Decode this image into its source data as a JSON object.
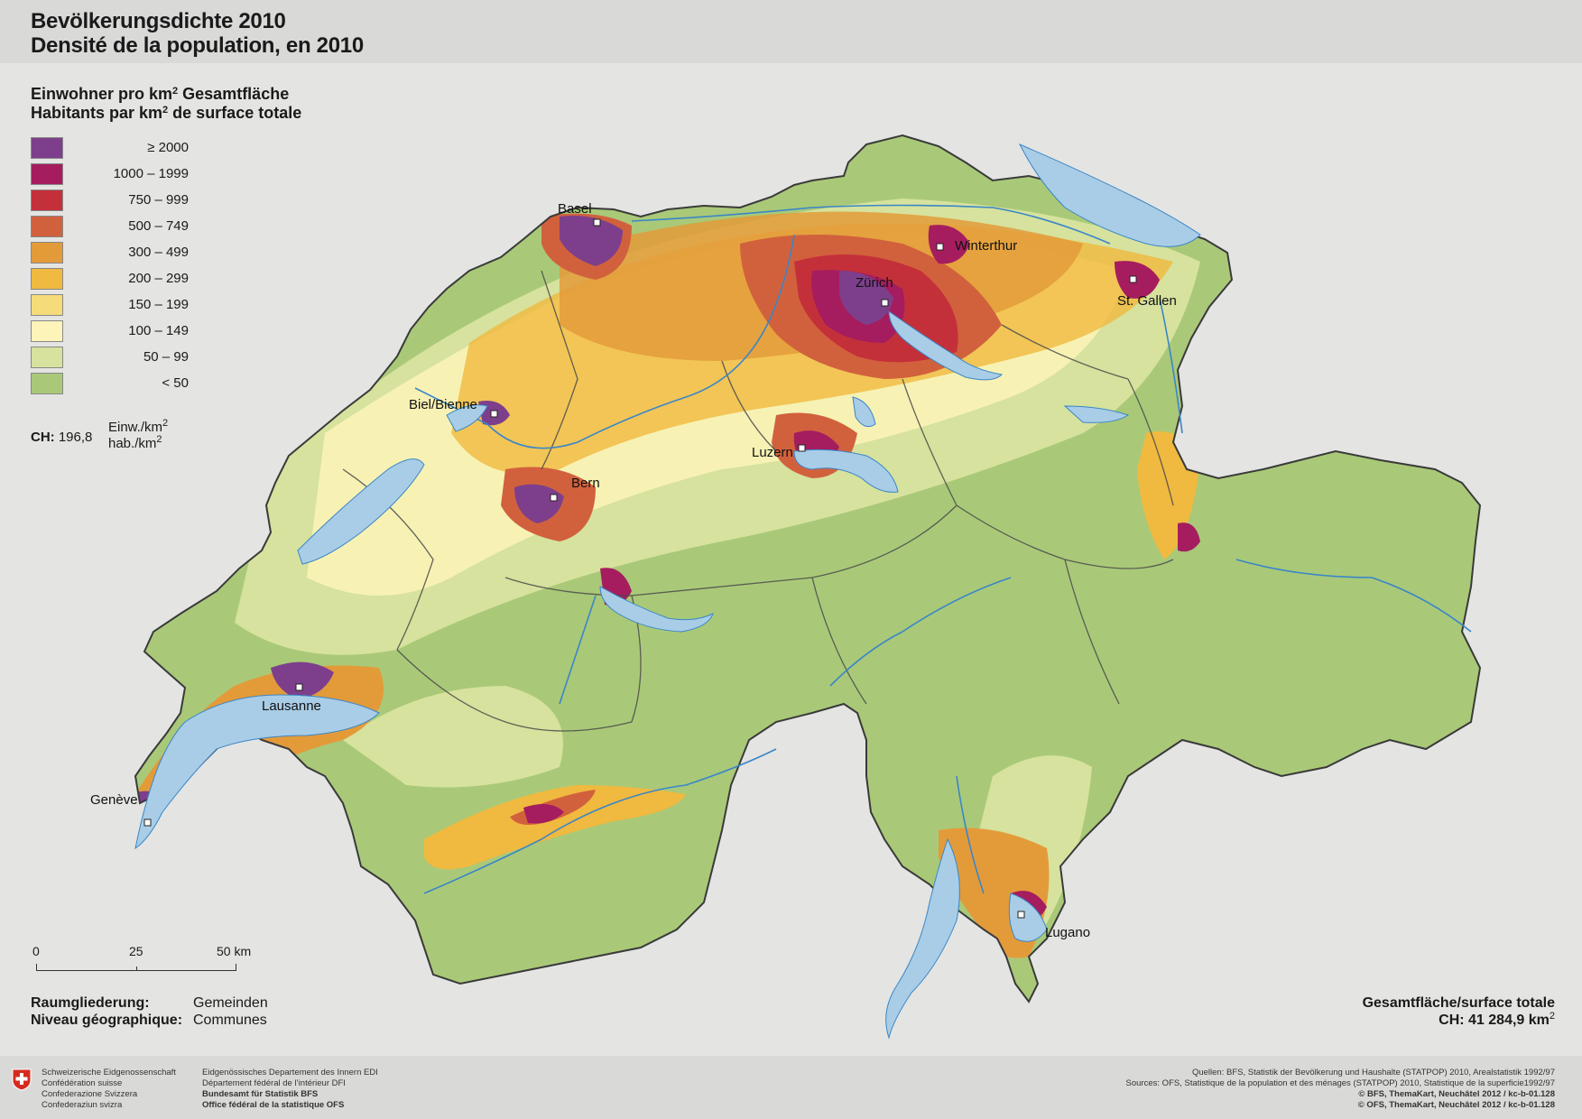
{
  "title": {
    "line1": "Bevölkerungsdichte 2010",
    "line2": "Densité de la population, en 2010"
  },
  "legend": {
    "title_de_a": "Einwohner pro km",
    "title_de_b": " Gesamtfläche",
    "title_fr_a": "Habitants par km",
    "title_fr_b": " de surface totale",
    "sup": "2",
    "classes": [
      {
        "label": "≥ 2000",
        "color": "#7d3f8c"
      },
      {
        "label": "1000  –  1999",
        "color": "#a51d5f"
      },
      {
        "label": "750  –    999",
        "color": "#c4303a"
      },
      {
        "label": "500  –    749",
        "color": "#d1613d"
      },
      {
        "label": "300  –    499",
        "color": "#e39b3a"
      },
      {
        "label": "200  –    299",
        "color": "#f0b93f"
      },
      {
        "label": "150  –    199",
        "color": "#f6db7a"
      },
      {
        "label": "100  –    149",
        "color": "#fdf4b9"
      },
      {
        "label": "50  –      99",
        "color": "#d6e29d"
      },
      {
        "label": "<    50",
        "color": "#a9c978"
      }
    ]
  },
  "ch_average": {
    "label": "CH:",
    "value": "196,8",
    "unit_de": "Einw./km",
    "unit_fr": "hab./km",
    "sup": "2"
  },
  "scale": {
    "t0": "0",
    "t25": "25",
    "t50": "50 km"
  },
  "geography": {
    "de_label": "Raumgliederung:",
    "de_value": "Gemeinden",
    "fr_label": "Niveau géographique:",
    "fr_value": "Communes"
  },
  "area": {
    "label": "Gesamtfläche/surface totale",
    "value": "CH: 41 284,9 km",
    "sup": "2"
  },
  "cities": {
    "basel": "Basel",
    "zurich": "Zürich",
    "winterthur": "Winterthur",
    "stgallen": "St. Gallen",
    "biel": "Biel/Bienne",
    "luzern": "Luzern",
    "bern": "Bern",
    "lausanne": "Lausanne",
    "geneve": "Genève",
    "lugano": "Lugano"
  },
  "footer": {
    "fed1": "Schweizerische Eidgenossenschaft",
    "fed2": "Confédération suisse",
    "fed3": "Confederazione Svizzera",
    "fed4": "Confederaziun svizra",
    "edi1": "Eidgenössisches Departement des Innern EDI",
    "edi2": "Département fédéral de l’intérieur DFI",
    "edi3": "Bundesamt für Statistik BFS",
    "edi4": "Office fédéral de la statistique OFS",
    "src1": "Quellen: BFS, Statistik der Bevölkerung und Haushalte (STATPOP) 2010, Arealstatistik 1992/97",
    "src2": "Sources: OFS, Statistique de la population et des ménages (STATPOP) 2010, Statistique de la superficie1992/97",
    "src3": "© BFS, ThemaKart, Neuchâtel 2012 / kc-b-01.128",
    "src4": "© OFS, ThemaKart, Neuchâtel 2012 / kc-b-01.128"
  },
  "colors": {
    "lake": "#a9cde6",
    "river": "#3a86c8",
    "border": "#4a4a4a"
  }
}
